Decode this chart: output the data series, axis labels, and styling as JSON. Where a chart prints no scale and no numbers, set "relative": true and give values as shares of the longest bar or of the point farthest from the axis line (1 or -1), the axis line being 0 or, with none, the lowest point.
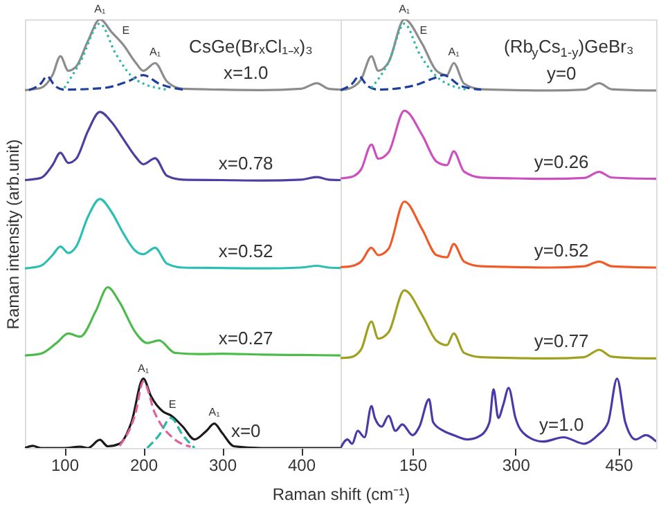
{
  "chart_data": [
    {
      "type": "line",
      "relative": true,
      "title": "CsGe(BrₓCl₁₋ₓ)₃",
      "ylabel": "Raman intensity (arb.unit)",
      "xlabel": "Raman shift (cm⁻¹)",
      "xlim": [
        50,
        450
      ],
      "xticks": [
        100,
        200,
        300,
        400
      ],
      "grid": false,
      "series": [
        {
          "name": "x=1.0",
          "color": "#8c8c8c",
          "x": [
            50,
            70,
            85,
            95,
            105,
            115,
            130,
            145,
            160,
            175,
            190,
            200,
            215,
            230,
            250,
            300,
            350,
            400,
            420,
            435,
            450
          ],
          "values": [
            0.835,
            0.84,
            0.87,
            0.914,
            0.88,
            0.89,
            0.95,
            1.0,
            0.97,
            0.94,
            0.9,
            0.88,
            0.898,
            0.855,
            0.838,
            0.836,
            0.835,
            0.838,
            0.851,
            0.838,
            0.836
          ]
        },
        {
          "color": "#1f3f9f",
          "line_style": "dashed",
          "x": [
            55,
            70,
            78,
            88,
            100,
            150,
            180,
            200,
            220,
            250
          ],
          "values": [
            0.835,
            0.85,
            0.867,
            0.845,
            0.836,
            0.84,
            0.855,
            0.87,
            0.85,
            0.836
          ]
        },
        {
          "color": "#2ab7a9",
          "line_style": "dotted",
          "x": [
            100,
            120,
            145,
            165,
            190,
            230
          ],
          "values": [
            0.84,
            0.9,
            0.99,
            0.92,
            0.86,
            0.836
          ]
        },
        {
          "name": "x=0.78",
          "color": "#4b3fa0",
          "x": [
            50,
            70,
            85,
            95,
            105,
            115,
            130,
            145,
            160,
            175,
            190,
            200,
            215,
            230,
            250,
            300,
            350,
            400,
            420,
            435,
            450
          ],
          "values": [
            0.625,
            0.63,
            0.66,
            0.689,
            0.665,
            0.675,
            0.74,
            0.784,
            0.76,
            0.72,
            0.68,
            0.662,
            0.676,
            0.635,
            0.626,
            0.625,
            0.624,
            0.626,
            0.632,
            0.626,
            0.625
          ]
        },
        {
          "name": "x=0.52",
          "color": "#2bbfb3",
          "x": [
            50,
            70,
            85,
            95,
            105,
            115,
            130,
            145,
            160,
            175,
            190,
            200,
            215,
            230,
            250,
            300,
            350,
            400,
            420,
            435,
            450
          ],
          "values": [
            0.419,
            0.425,
            0.45,
            0.47,
            0.455,
            0.47,
            0.54,
            0.581,
            0.55,
            0.5,
            0.46,
            0.452,
            0.467,
            0.43,
            0.421,
            0.42,
            0.419,
            0.421,
            0.425,
            0.421,
            0.42
          ]
        },
        {
          "name": "x=0.27",
          "color": "#4cbb4c",
          "x": [
            50,
            70,
            90,
            105,
            120,
            140,
            155,
            170,
            190,
            205,
            220,
            240,
            270,
            300,
            350,
            400,
            450
          ],
          "values": [
            0.216,
            0.22,
            0.245,
            0.267,
            0.26,
            0.32,
            0.375,
            0.34,
            0.27,
            0.245,
            0.251,
            0.222,
            0.219,
            0.22,
            0.218,
            0.217,
            0.216
          ]
        },
        {
          "name": "x=0",
          "color": "#1a1a1a",
          "x": [
            50,
            60,
            70,
            100,
            120,
            130,
            145,
            155,
            170,
            185,
            200,
            210,
            225,
            235,
            250,
            265,
            280,
            290,
            300,
            315,
            350,
            400,
            450
          ],
          "values": [
            0.0,
            0.005,
            0.0,
            0.0,
            0.003,
            0.0,
            0.019,
            0.004,
            0.01,
            0.06,
            0.162,
            0.12,
            0.085,
            0.076,
            0.05,
            0.02,
            0.04,
            0.057,
            0.035,
            0.004,
            0.0,
            0.0,
            0.0
          ]
        },
        {
          "color": "#e0609a",
          "line_style": "dashed",
          "x": [
            170,
            190,
            200,
            215,
            240,
            260
          ],
          "values": [
            0.005,
            0.08,
            0.155,
            0.08,
            0.02,
            0.003
          ]
        },
        {
          "color": "#2ab7a9",
          "line_style": "dashed",
          "x": [
            205,
            220,
            235,
            250,
            265
          ],
          "values": [
            0.0,
            0.03,
            0.07,
            0.03,
            0.0
          ]
        }
      ],
      "annotations": [
        {
          "text": "A₁",
          "x": 145,
          "y": 1.0
        },
        {
          "text": "E",
          "x": 178,
          "y": 0.95
        },
        {
          "text": "A₁",
          "x": 215,
          "y": 0.9
        },
        {
          "text": "A₁",
          "x": 200,
          "y": 0.162
        },
        {
          "text": "E",
          "x": 237,
          "y": 0.078
        },
        {
          "text": "A₁",
          "x": 290,
          "y": 0.06
        }
      ]
    },
    {
      "type": "line",
      "relative": true,
      "title": "(Rb$_{y}$Cs$_{1-y}$)GeBr₃",
      "xlim": [
        45,
        505
      ],
      "xticks": [
        150,
        300,
        450
      ],
      "grid": false,
      "series": [
        {
          "name": "y=0",
          "color": "#8c8c8c",
          "x": [
            45,
            60,
            75,
            90,
            100,
            115,
            138,
            164,
            185,
            200,
            210,
            225,
            250,
            300,
            350,
            400,
            422,
            440,
            470,
            505
          ],
          "values": [
            0.835,
            0.84,
            0.86,
            0.914,
            0.88,
            0.9,
            1.0,
            0.943,
            0.88,
            0.87,
            0.898,
            0.85,
            0.837,
            0.835,
            0.834,
            0.836,
            0.851,
            0.837,
            0.835,
            0.834
          ]
        },
        {
          "color": "#1f3f9f",
          "line_style": "dashed",
          "x": [
            45,
            62,
            72,
            84,
            100,
            150,
            180,
            195,
            220,
            250
          ],
          "values": [
            0.835,
            0.85,
            0.867,
            0.845,
            0.836,
            0.845,
            0.862,
            0.87,
            0.845,
            0.836
          ]
        },
        {
          "color": "#2ab7a9",
          "line_style": "dotted",
          "x": [
            90,
            115,
            138,
            160,
            190,
            230
          ],
          "values": [
            0.84,
            0.9,
            0.99,
            0.92,
            0.86,
            0.836
          ]
        },
        {
          "name": "y=0.26",
          "color": "#cc4fc0",
          "x": [
            45,
            60,
            75,
            90,
            100,
            115,
            138,
            164,
            185,
            200,
            210,
            225,
            250,
            300,
            350,
            400,
            422,
            440,
            470,
            505
          ],
          "values": [
            0.629,
            0.632,
            0.65,
            0.708,
            0.675,
            0.69,
            0.787,
            0.73,
            0.668,
            0.66,
            0.692,
            0.645,
            0.631,
            0.629,
            0.628,
            0.63,
            0.644,
            0.631,
            0.629,
            0.628
          ]
        },
        {
          "name": "y=0.52",
          "color": "#f05a28",
          "x": [
            45,
            60,
            75,
            90,
            100,
            115,
            138,
            164,
            185,
            200,
            210,
            225,
            250,
            300,
            350,
            400,
            422,
            440,
            470,
            505
          ],
          "values": [
            0.422,
            0.424,
            0.435,
            0.467,
            0.45,
            0.465,
            0.575,
            0.51,
            0.45,
            0.445,
            0.476,
            0.435,
            0.424,
            0.422,
            0.421,
            0.424,
            0.435,
            0.424,
            0.422,
            0.421
          ]
        },
        {
          "name": "y=0.77",
          "color": "#a0a020",
          "x": [
            45,
            60,
            75,
            90,
            100,
            115,
            138,
            164,
            185,
            200,
            210,
            225,
            250,
            300,
            350,
            400,
            422,
            440,
            470,
            505
          ],
          "values": [
            0.21,
            0.212,
            0.23,
            0.295,
            0.255,
            0.27,
            0.368,
            0.31,
            0.25,
            0.24,
            0.267,
            0.222,
            0.212,
            0.21,
            0.209,
            0.212,
            0.229,
            0.213,
            0.21,
            0.209
          ]
        },
        {
          "name": "y=1.0",
          "color": "#4a3aa8",
          "x": [
            45,
            55,
            62,
            70,
            80,
            90,
            95,
            105,
            115,
            125,
            135,
            150,
            160,
            174,
            180,
            195,
            210,
            230,
            250,
            262,
            268,
            275,
            282,
            290,
            300,
            315,
            340,
            370,
            400,
            420,
            435,
            448,
            460,
            475,
            490,
            505
          ],
          "values": [
            0.0,
            0.02,
            0.01,
            0.04,
            0.025,
            0.098,
            0.07,
            0.05,
            0.075,
            0.04,
            0.055,
            0.03,
            0.05,
            0.114,
            0.06,
            0.04,
            0.03,
            0.02,
            0.03,
            0.06,
            0.137,
            0.07,
            0.1,
            0.14,
            0.07,
            0.03,
            0.015,
            0.025,
            0.01,
            0.03,
            0.06,
            0.162,
            0.06,
            0.02,
            0.03,
            0.015
          ]
        }
      ],
      "annotations": [
        {
          "text": "A₁",
          "x": 138,
          "y": 1.0
        },
        {
          "text": "E",
          "x": 166,
          "y": 0.95
        },
        {
          "text": "A₁",
          "x": 210,
          "y": 0.9
        }
      ]
    }
  ]
}
